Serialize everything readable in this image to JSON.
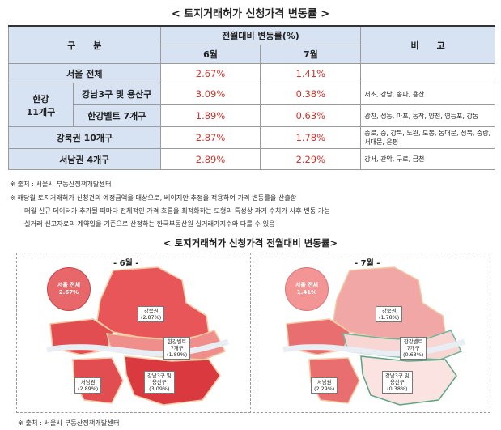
{
  "title": "< 토지거래허가 신청가격 변동률 >",
  "table": {
    "header_group": "구　　분",
    "header_change": "전월대비 변동률(%)",
    "header_jun": "6월",
    "header_jul": "7월",
    "header_note": "비　　고",
    "rows": [
      {
        "label": "서울 전체",
        "jun": "2.67%",
        "jul": "1.41%",
        "note": ""
      },
      {
        "group": "한강 11개구",
        "label": "강남3구 및 용산구",
        "jun": "3.09%",
        "jul": "0.38%",
        "note": "서초, 강남, 송파, 용산"
      },
      {
        "label": "한강벨트 7개구",
        "jun": "1.89%",
        "jul": "0.63%",
        "note": "광진, 성동, 마포, 동작, 양천, 영등포, 강동"
      },
      {
        "label": "강북권 10개구",
        "jun": "2.87%",
        "jul": "1.78%",
        "note": "종로, 중, 강북, 노원, 도봉, 동대문, 성북, 중랑, 서대문, 은평"
      },
      {
        "label": "서남권 4개구",
        "jun": "2.89%",
        "jul": "2.29%",
        "note": "강서, 관악, 구로, 금천"
      }
    ],
    "group_line1": "한강",
    "group_line2": "11개구"
  },
  "footnotes": [
    "※ 출처 : 서울시 부동산정책개발센터",
    "※ 해당월 토지거래허가 신청건의 예정금액을 대상으로, 베이지안 추정을 적용하여 가격 변동률을 산출함",
    "매월 신규 데이터가 추가될 때마다 전체적인 가격 흐름을 최적화하는 모형의 특성상 과거 수치가 사후 변동 가능",
    "실거래 신고자료의 계약일을 기준으로 산정하는 한국부동산원 실거래가지수와 다를 수 있음"
  ],
  "map_title": "< 토지거래허가 신청가격 전월대비 변동률>",
  "maps": [
    {
      "label": "- 6월 -",
      "total_label": "서울 전체",
      "total_value": "2.67%",
      "gangbuk": [
        "강북권",
        "(2.87%)"
      ],
      "hangang": [
        "한강벨트",
        "7개구",
        "(1.89%)"
      ],
      "seonam": [
        "서남권",
        "(2.89%)"
      ],
      "gangnam": [
        "강남3구 및",
        "용산구",
        "(3.09%)"
      ],
      "colors": {
        "north": "#e8565a",
        "belt": "#ef8e8a",
        "southwest": "#e24d52",
        "gangnam": "#d9393f",
        "circle": "#e8676a"
      }
    },
    {
      "label": "- 7월 -",
      "total_label": "서울 전체",
      "total_value": "1.41%",
      "gangbuk": [
        "강북권",
        "(1.78%)"
      ],
      "hangang": [
        "한강벨트",
        "7개구",
        "(0.63%)"
      ],
      "seonam": [
        "서남권",
        "(2.29%)"
      ],
      "gangnam": [
        "강남3구 및",
        "용산구",
        "(0.38%)"
      ],
      "colors": {
        "north": "#f2a7a7",
        "belt": "#f8d6d4",
        "southwest": "#e86e70",
        "gangnam": "#fbe3e1",
        "circle": "#f29594"
      }
    }
  ],
  "footnote2": "※ 출처 : 서울시 부동산정책개발센터"
}
